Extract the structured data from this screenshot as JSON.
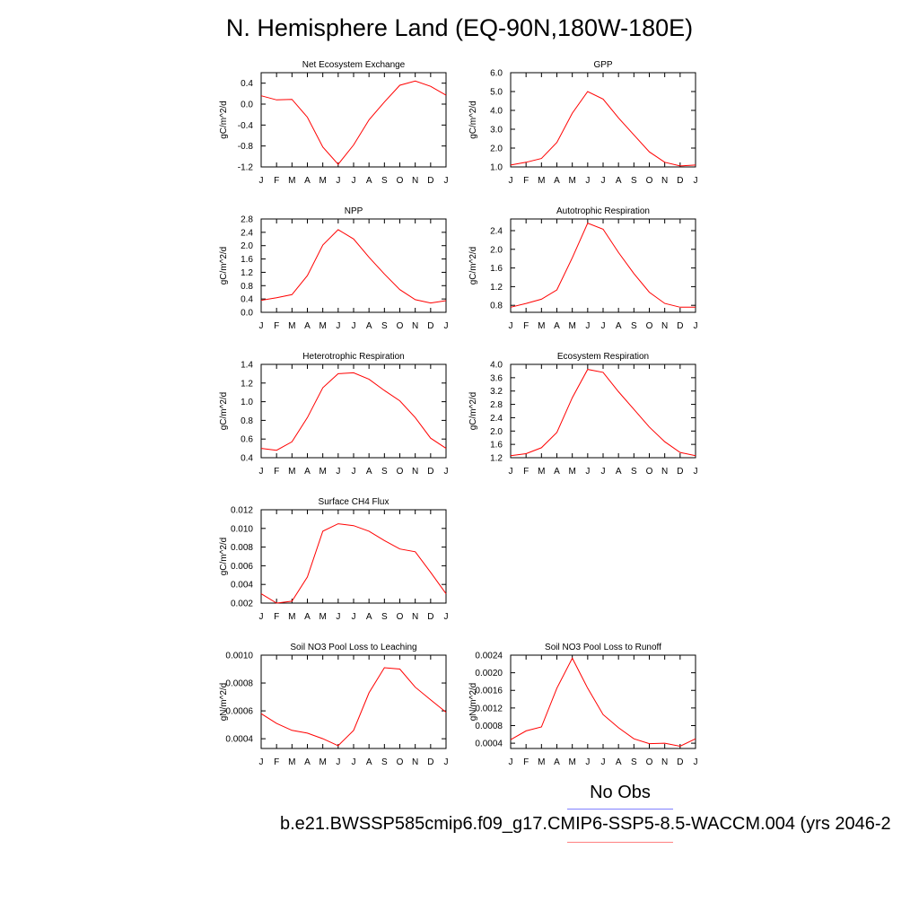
{
  "page_title": "N. Hemisphere Land (EQ-90N,180W-180E)",
  "colors": {
    "model_line": "#ff0000",
    "obs_line": "#8080ff",
    "model_legend_line": "#ff8080"
  },
  "legend": {
    "obs_label": "No Obs",
    "model_label": "b.e21.BWSSP585cmip6.f09_g17.CMIP6-SSP5-8.5-WACCM.004 (yrs 2046-2"
  },
  "chart_data": [
    {
      "type": "line",
      "title": "Net Ecosystem Exchange",
      "xlabel": "",
      "ylabel": "gC/m^2/d",
      "categories": [
        "J",
        "F",
        "M",
        "A",
        "M",
        "J",
        "J",
        "A",
        "S",
        "O",
        "N",
        "D",
        "J"
      ],
      "yticks": [
        "0.4",
        "0.0",
        "-0.4",
        "-0.8",
        "-1.2"
      ],
      "ylim": [
        -1.2,
        0.6
      ],
      "values": [
        0.16,
        0.08,
        0.09,
        -0.25,
        -0.82,
        -1.15,
        -0.78,
        -0.3,
        0.04,
        0.36,
        0.44,
        0.34,
        0.17
      ]
    },
    {
      "type": "line",
      "title": "GPP",
      "xlabel": "",
      "ylabel": "gC/m^2/d",
      "categories": [
        "J",
        "F",
        "M",
        "A",
        "M",
        "J",
        "J",
        "A",
        "S",
        "O",
        "N",
        "D",
        "J"
      ],
      "yticks": [
        "6.0",
        "5.0",
        "4.0",
        "3.0",
        "2.0",
        "1.0"
      ],
      "ylim": [
        1.0,
        6.0
      ],
      "values": [
        1.1,
        1.25,
        1.45,
        2.3,
        3.85,
        5.0,
        4.6,
        3.6,
        2.7,
        1.8,
        1.25,
        1.05,
        1.1
      ]
    },
    {
      "type": "line",
      "title": "NPP",
      "xlabel": "",
      "ylabel": "gC/m^2/d",
      "categories": [
        "J",
        "F",
        "M",
        "A",
        "M",
        "J",
        "J",
        "A",
        "S",
        "O",
        "N",
        "D",
        "J"
      ],
      "yticks": [
        "2.8",
        "2.4",
        "2.0",
        "1.6",
        "1.2",
        "0.8",
        "0.4",
        "0.0"
      ],
      "ylim": [
        0.0,
        2.8
      ],
      "values": [
        0.36,
        0.44,
        0.53,
        1.1,
        2.02,
        2.48,
        2.2,
        1.65,
        1.15,
        0.68,
        0.38,
        0.28,
        0.35
      ]
    },
    {
      "type": "line",
      "title": "Autotrophic Respiration",
      "xlabel": "",
      "ylabel": "gC/m^2/d",
      "categories": [
        "J",
        "F",
        "M",
        "A",
        "M",
        "J",
        "J",
        "A",
        "S",
        "O",
        "N",
        "D",
        "J"
      ],
      "yticks": [
        "2.4",
        "2.0",
        "1.6",
        "1.2",
        "0.8"
      ],
      "ylim": [
        0.65,
        2.65
      ],
      "values": [
        0.76,
        0.84,
        0.93,
        1.13,
        1.82,
        2.56,
        2.43,
        1.93,
        1.48,
        1.08,
        0.84,
        0.76,
        0.76
      ]
    },
    {
      "type": "line",
      "title": "Heterotrophic Respiration",
      "xlabel": "",
      "ylabel": "gC/m^2/d",
      "categories": [
        "J",
        "F",
        "M",
        "A",
        "M",
        "J",
        "J",
        "A",
        "S",
        "O",
        "N",
        "D",
        "J"
      ],
      "yticks": [
        "1.4",
        "1.2",
        "1.0",
        "0.8",
        "0.6",
        "0.4"
      ],
      "ylim": [
        0.4,
        1.4
      ],
      "values": [
        0.5,
        0.48,
        0.57,
        0.83,
        1.15,
        1.3,
        1.31,
        1.24,
        1.12,
        1.01,
        0.83,
        0.61,
        0.5
      ]
    },
    {
      "type": "line",
      "title": "Ecosystem Respiration",
      "xlabel": "",
      "ylabel": "gC/m^2/d",
      "categories": [
        "J",
        "F",
        "M",
        "A",
        "M",
        "J",
        "J",
        "A",
        "S",
        "O",
        "N",
        "D",
        "J"
      ],
      "yticks": [
        "4.0",
        "3.6",
        "3.2",
        "2.8",
        "2.4",
        "2.0",
        "1.6",
        "1.2"
      ],
      "ylim": [
        1.2,
        4.0
      ],
      "values": [
        1.26,
        1.32,
        1.5,
        1.96,
        3.0,
        3.85,
        3.76,
        3.18,
        2.65,
        2.12,
        1.68,
        1.36,
        1.26
      ]
    },
    {
      "type": "line",
      "title": "Surface CH4 Flux",
      "xlabel": "",
      "ylabel": "gC/m^2/d",
      "categories": [
        "J",
        "F",
        "M",
        "A",
        "M",
        "J",
        "J",
        "A",
        "S",
        "O",
        "N",
        "D",
        "J"
      ],
      "yticks": [
        "0.012",
        "0.010",
        "0.008",
        "0.006",
        "0.004",
        "0.002"
      ],
      "ylim": [
        0.002,
        0.012
      ],
      "values": [
        0.003,
        0.002,
        0.0022,
        0.0048,
        0.0097,
        0.0105,
        0.0103,
        0.0097,
        0.0087,
        0.0078,
        0.0075,
        0.0053,
        0.003
      ]
    },
    {
      "type": "line",
      "title": "Soil NO3 Pool Loss to Leaching",
      "xlabel": "",
      "ylabel": "gN/m^2/d",
      "categories": [
        "J",
        "F",
        "M",
        "A",
        "M",
        "J",
        "J",
        "A",
        "S",
        "O",
        "N",
        "D",
        "J"
      ],
      "yticks": [
        "0.0010",
        "0.0008",
        "0.0006",
        "0.0004"
      ],
      "ylim": [
        0.00033,
        0.001
      ],
      "values": [
        0.00058,
        0.00051,
        0.00046,
        0.00044,
        0.0004,
        0.00035,
        0.00046,
        0.00073,
        0.00091,
        0.0009,
        0.00077,
        0.00068,
        0.00059
      ]
    },
    {
      "type": "line",
      "title": "Soil NO3 Pool Loss to Runoff",
      "xlabel": "",
      "ylabel": "gN/m^2/d",
      "categories": [
        "J",
        "F",
        "M",
        "A",
        "M",
        "J",
        "J",
        "A",
        "S",
        "O",
        "N",
        "D",
        "J"
      ],
      "yticks": [
        "0.0024",
        "0.0020",
        "0.0016",
        "0.0012",
        "0.0008",
        "0.0004"
      ],
      "ylim": [
        0.00028,
        0.0024
      ],
      "values": [
        0.00048,
        0.00068,
        0.00077,
        0.00165,
        0.00233,
        0.00165,
        0.00105,
        0.00075,
        0.0005,
        0.00039,
        0.0004,
        0.00033,
        0.0005
      ]
    }
  ]
}
